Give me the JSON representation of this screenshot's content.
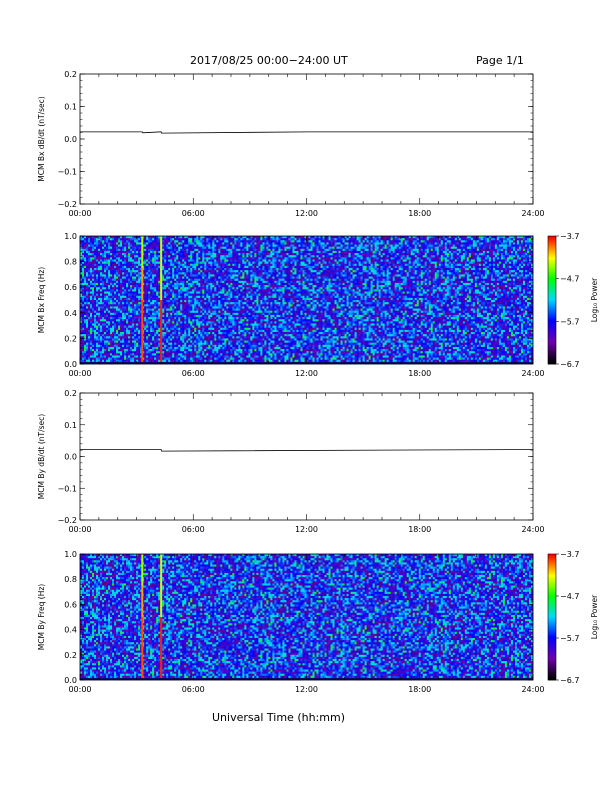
{
  "header": {
    "title": "2017/08/25  00:00−24:00 UT",
    "page": "Page 1/1"
  },
  "xlabel": "Universal Time (hh:mm)",
  "x_ticks": [
    "00:00",
    "06:00",
    "12:00",
    "18:00",
    "24:00"
  ],
  "chart_data": [
    {
      "type": "line",
      "ylabel": "MCM Bx dB/dt (nT/sec)",
      "x_range_hours": [
        0,
        24
      ],
      "ylim": [
        -0.2,
        0.2
      ],
      "y_ticks": [
        "0.2",
        "0.1",
        "0.0",
        "−0.1",
        "−0.2"
      ],
      "series": [
        {
          "x": [
            0,
            3.3,
            3.32,
            4.3,
            4.32,
            12.1,
            24
          ],
          "values": [
            0.022,
            0.022,
            0.019,
            0.022,
            0.018,
            0.022,
            0.022
          ]
        }
      ]
    },
    {
      "type": "heatmap",
      "ylabel": "MCM Bx Freq (Hz)",
      "ylim": [
        0.0,
        1.0
      ],
      "y_ticks": [
        "1.0",
        "0.8",
        "0.6",
        "0.4",
        "0.2",
        "0.0"
      ],
      "colorbar": {
        "label": "Log₁₀ Power",
        "ticks": [
          "−3.7",
          "−4.7",
          "−5.7",
          "−6.7"
        ],
        "range": [
          -6.7,
          -3.7
        ]
      },
      "background_level": -5.7,
      "spikes_hours": [
        3.3,
        4.3
      ],
      "colors": [
        "#000000",
        "#7000b0",
        "#0000ff",
        "#00d8ff",
        "#00ff00",
        "#ffff00",
        "#ff0000"
      ]
    },
    {
      "type": "line",
      "ylabel": "MCM By dB/dt (nT/sec)",
      "x_range_hours": [
        0,
        24
      ],
      "ylim": [
        -0.2,
        0.2
      ],
      "y_ticks": [
        "0.2",
        "0.1",
        "0.0",
        "−0.1",
        "−0.2"
      ],
      "series": [
        {
          "x": [
            0,
            4.3,
            4.32,
            24
          ],
          "values": [
            0.022,
            0.022,
            0.017,
            0.022
          ]
        }
      ]
    },
    {
      "type": "heatmap",
      "ylabel": "MCM By Freq (Hz)",
      "ylim": [
        0.0,
        1.0
      ],
      "y_ticks": [
        "1.0",
        "0.8",
        "0.6",
        "0.4",
        "0.2",
        "0.0"
      ],
      "colorbar": {
        "label": "Log₁₀ Power",
        "ticks": [
          "−3.7",
          "−4.7",
          "−5.7",
          "−6.7"
        ],
        "range": [
          -6.7,
          -3.7
        ]
      },
      "background_level": -5.7,
      "spikes_hours": [
        3.3,
        4.3
      ],
      "colors": [
        "#000000",
        "#7000b0",
        "#0000ff",
        "#00d8ff",
        "#00ff00",
        "#ffff00",
        "#ff0000"
      ]
    }
  ]
}
